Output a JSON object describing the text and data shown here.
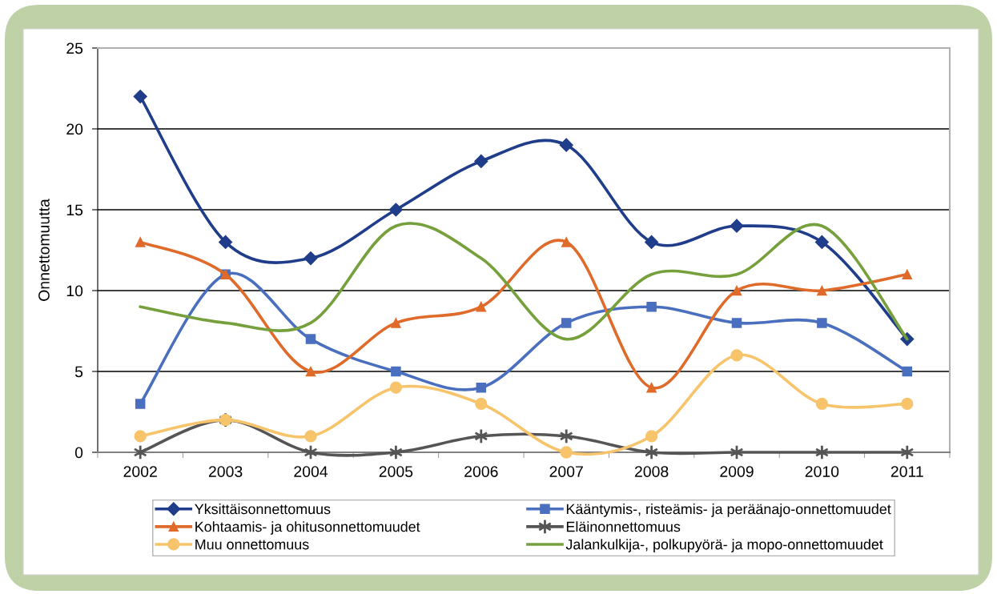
{
  "chart_data": {
    "type": "line",
    "ylabel": "Onnettomuutta",
    "categories": [
      "2002",
      "2003",
      "2004",
      "2005",
      "2006",
      "2007",
      "2008",
      "2009",
      "2010",
      "2011"
    ],
    "series": [
      {
        "name": "Yksittäisonnettomuus",
        "color": "#1f3d8a",
        "marker": "diamond",
        "values": [
          22,
          13,
          12,
          15,
          18,
          19,
          13,
          14,
          13,
          7
        ]
      },
      {
        "name": "Kääntymis-, risteämis- ja peräänajo-onnettomuudet",
        "color": "#4a6fbf",
        "marker": "square",
        "values": [
          3,
          11,
          7,
          5,
          4,
          8,
          9,
          8,
          8,
          5
        ]
      },
      {
        "name": "Kohtaamis- ja ohitusonnettomuudet",
        "color": "#e06a2a",
        "marker": "triangle",
        "values": [
          13,
          11,
          5,
          8,
          9,
          13,
          4,
          10,
          10,
          11
        ]
      },
      {
        "name": "Eläinonnettomuus",
        "color": "#555555",
        "marker": "cross",
        "values": [
          0,
          2,
          0,
          0,
          1,
          1,
          0,
          0,
          0,
          0
        ]
      },
      {
        "name": "Muu onnettomuus",
        "color": "#f7c46c",
        "marker": "circle",
        "values": [
          1,
          2,
          1,
          4,
          3,
          0,
          1,
          6,
          3,
          3
        ]
      },
      {
        "name": "Jalankulkija-, polkupyörä- ja mopo-onnettomuudet",
        "color": "#76a03c",
        "marker": "none",
        "values": [
          9,
          8,
          8,
          14,
          12,
          7,
          11,
          11,
          14,
          7
        ]
      }
    ],
    "ylim": [
      0,
      25
    ],
    "yticks": [
      0,
      5,
      10,
      15,
      20,
      25
    ],
    "grid": "y",
    "legend": "bottom",
    "line_style": "solid"
  }
}
